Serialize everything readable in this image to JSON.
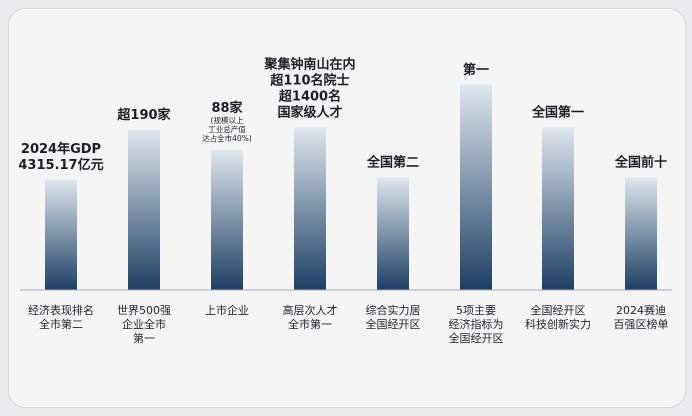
{
  "chart_data": {
    "type": "bar",
    "categories": [
      [
        "经济表现排名",
        "全市第二"
      ],
      [
        "世界500强",
        "企业全市",
        "第一"
      ],
      [
        "上市企业"
      ],
      [
        "高层次人才",
        "全市第一"
      ],
      [
        "综合实力居",
        "全国经开区"
      ],
      [
        "5项主要",
        "经济指标为",
        "全国经开区"
      ],
      [
        "全国经开区",
        "科技创新实力"
      ],
      [
        "2024赛迪",
        "百强区榜单"
      ]
    ],
    "values": [
      0.44,
      0.64,
      0.56,
      0.65,
      0.45,
      0.82,
      0.65,
      0.45
    ],
    "value_labels": [
      {
        "lines": [
          "2024年GDP",
          "4315.17亿元"
        ],
        "sub": []
      },
      {
        "lines": [
          "超190家"
        ],
        "sub": []
      },
      {
        "lines": [
          "88家"
        ],
        "sub": [
          "(规模以上",
          "工业总产值",
          "达占全市40%)"
        ]
      },
      {
        "lines": [
          "聚集钟南山在内",
          "超110名院士",
          "超1400名",
          "国家级人才"
        ],
        "sub": []
      },
      {
        "lines": [
          "全国第二"
        ],
        "sub": []
      },
      {
        "lines": [
          "第一"
        ],
        "sub": []
      },
      {
        "lines": [
          "全国第一"
        ],
        "sub": []
      },
      {
        "lines": [
          "全国前十"
        ],
        "sub": []
      }
    ],
    "bar_color_top": "#dfe6ee",
    "bar_color_bottom": "#1d3f64",
    "baseline_color": "#a3acb6",
    "title": "",
    "xlabel": "",
    "ylabel": ""
  }
}
